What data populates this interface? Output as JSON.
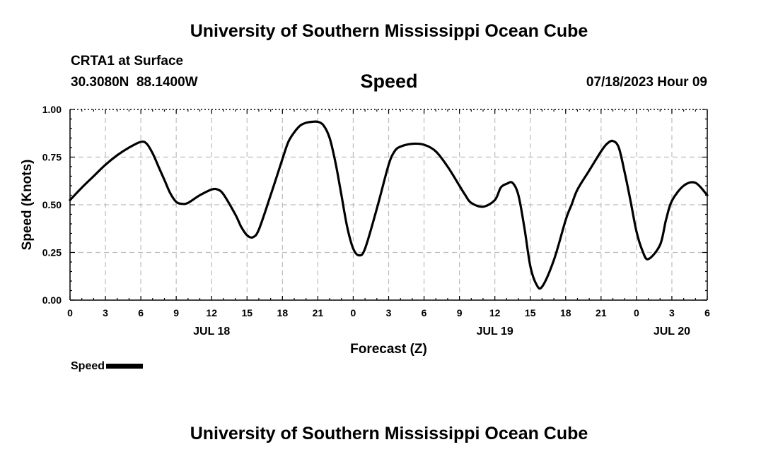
{
  "header": {
    "title": "University of Southern Mississippi Ocean Cube",
    "station": "CRTA1 at Surface",
    "coordinates": "30.3080N  88.1400W",
    "variable": "Speed",
    "datetime": "07/18/2023 Hour 09"
  },
  "footer": {
    "title": "University of Southern Mississippi Ocean Cube"
  },
  "chart_data": {
    "type": "line",
    "title": "Speed",
    "xlabel": "Forecast (Z)",
    "ylabel": "Speed (Knots)",
    "xlim": [
      0,
      54
    ],
    "ylim": [
      0,
      1
    ],
    "x_unit": "forecast hours from 00Z JUL 18",
    "xticks": [
      0,
      3,
      6,
      9,
      12,
      15,
      18,
      21,
      24,
      27,
      30,
      33,
      36,
      39,
      42,
      45,
      48,
      51,
      54
    ],
    "xtick_labels": [
      "0",
      "3",
      "6",
      "9",
      "12",
      "15",
      "18",
      "21",
      "0",
      "3",
      "6",
      "9",
      "12",
      "15",
      "18",
      "21",
      "0",
      "3",
      "6"
    ],
    "yticks": [
      0,
      0.25,
      0.5,
      0.75,
      1.0
    ],
    "ytick_labels": [
      "0.00",
      "0.25",
      "0.50",
      "0.75",
      "1.00"
    ],
    "date_labels": [
      {
        "x": 12,
        "label": "JUL 18"
      },
      {
        "x": 36,
        "label": "JUL 19"
      },
      {
        "x": 51,
        "label": "JUL 20"
      }
    ],
    "grid": true,
    "legend": [
      {
        "name": "Speed",
        "position": "bottom-left"
      }
    ],
    "series": [
      {
        "name": "Speed",
        "color": "#000000",
        "x": [
          0,
          1,
          2,
          3,
          4,
          5,
          6,
          6.5,
          7,
          7.5,
          8,
          8.5,
          9,
          9.5,
          10,
          11,
          12,
          12.5,
          13,
          14,
          14.5,
          15,
          15.5,
          16,
          17,
          18,
          18.5,
          19,
          19.5,
          20,
          20.5,
          21,
          21.5,
          22,
          22.5,
          23,
          23.5,
          24,
          24.5,
          25,
          26,
          27,
          27.5,
          28,
          29,
          30,
          31,
          32,
          33,
          33.5,
          34,
          35,
          36,
          36.5,
          37,
          37.5,
          38,
          38.5,
          39,
          39.5,
          40,
          41,
          42,
          42.5,
          43,
          44,
          45,
          45.5,
          46,
          46.5,
          47,
          47.5,
          48,
          48.5,
          49,
          50,
          50.5,
          51,
          52,
          53,
          54
        ],
        "values": [
          0.525,
          0.59,
          0.65,
          0.71,
          0.76,
          0.8,
          0.83,
          0.82,
          0.77,
          0.7,
          0.63,
          0.56,
          0.515,
          0.505,
          0.51,
          0.55,
          0.58,
          0.58,
          0.555,
          0.45,
          0.385,
          0.34,
          0.33,
          0.37,
          0.55,
          0.74,
          0.83,
          0.88,
          0.915,
          0.93,
          0.935,
          0.935,
          0.915,
          0.85,
          0.72,
          0.55,
          0.38,
          0.27,
          0.235,
          0.27,
          0.48,
          0.71,
          0.78,
          0.805,
          0.82,
          0.815,
          0.78,
          0.7,
          0.6,
          0.55,
          0.51,
          0.49,
          0.525,
          0.59,
          0.61,
          0.615,
          0.55,
          0.38,
          0.18,
          0.085,
          0.07,
          0.21,
          0.42,
          0.5,
          0.58,
          0.68,
          0.78,
          0.82,
          0.835,
          0.8,
          0.67,
          0.52,
          0.36,
          0.26,
          0.215,
          0.29,
          0.42,
          0.52,
          0.6,
          0.615,
          0.55
        ]
      }
    ]
  }
}
